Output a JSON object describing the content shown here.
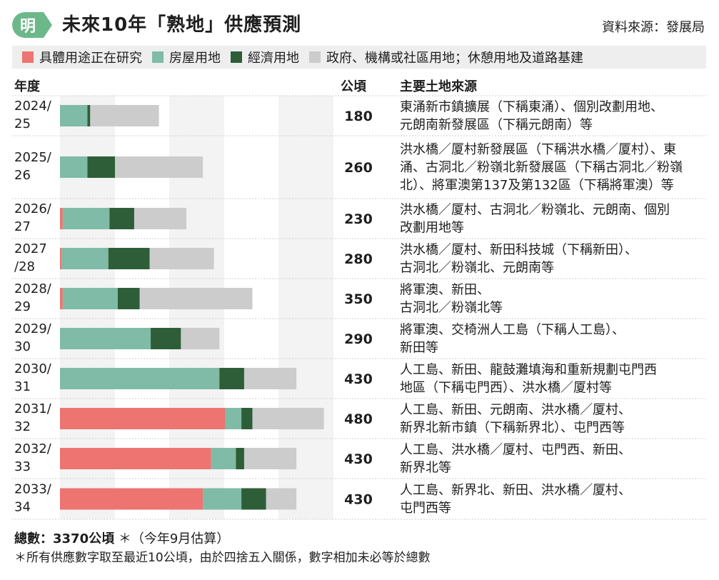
{
  "header": {
    "title": "未來10年「熟地」供應預測",
    "source": "資料來源：發展局",
    "logo_text": "明"
  },
  "legend": [
    {
      "label": "具體用途正在研究",
      "color": "#ed7470"
    },
    {
      "label": "房屋用地",
      "color": "#7fbba6"
    },
    {
      "label": "經濟用地",
      "color": "#2d5e38"
    },
    {
      "label": "政府、機構或社區用地；休憩用地及道路基建",
      "color": "#cccccc"
    }
  ],
  "columns": {
    "year": "年度",
    "hectares": "公頃",
    "source": "主要土地來源"
  },
  "chart_data": {
    "type": "bar",
    "orientation": "horizontal",
    "stacked": true,
    "unit": "公頃",
    "xlim": [
      0,
      480
    ],
    "grid": true,
    "categories": [
      "2024/25",
      "2025/26",
      "2026/27",
      "2027/28",
      "2028/29",
      "2029/30",
      "2030/31",
      "2031/32",
      "2032/33",
      "2033/34"
    ],
    "category_lines": [
      [
        "2024/",
        "25"
      ],
      [
        "2025/",
        "26"
      ],
      [
        "2026/",
        "27"
      ],
      [
        "2027",
        "/28"
      ],
      [
        "2028/",
        "29"
      ],
      [
        "2029/",
        "30"
      ],
      [
        "2030/",
        "31"
      ],
      [
        "2031/",
        "32"
      ],
      [
        "2032/",
        "33"
      ],
      [
        "2033/",
        "34"
      ]
    ],
    "series": [
      {
        "name": "具體用途正在研究",
        "color": "#ed7470",
        "values": [
          0,
          0,
          5,
          3,
          5,
          0,
          0,
          300,
          275,
          260
        ]
      },
      {
        "name": "房屋用地",
        "color": "#7fbba6",
        "values": [
          50,
          50,
          85,
          85,
          100,
          165,
          290,
          30,
          45,
          70
        ]
      },
      {
        "name": "經濟用地",
        "color": "#2d5e38",
        "values": [
          5,
          50,
          45,
          75,
          40,
          55,
          45,
          20,
          15,
          45
        ]
      },
      {
        "name": "政府、機構或社區用地；休憩用地及道路基建",
        "color": "#cccccc",
        "values": [
          125,
          160,
          95,
          117,
          205,
          70,
          95,
          130,
          95,
          55
        ]
      }
    ],
    "totals": [
      "180",
      "260",
      "230",
      "280",
      "350",
      "290",
      "430",
      "480",
      "430",
      "430"
    ]
  },
  "sources": [
    [
      "東涌新市鎮擴展（下稱東涌）、個別改劃用地、",
      "元朗南新發展區（下稱元朗南）等"
    ],
    [
      "洪水橋／厦村新發展區（下稱洪水橋／厦村）、東",
      "涌、古洞北／粉嶺北新發展區（下稱古洞北／粉嶺",
      "北）、將軍澳第137及第132區（下稱將軍澳）等"
    ],
    [
      "洪水橋／厦村、古洞北／粉嶺北、元朗南、個別",
      "改劃用地等"
    ],
    [
      "洪水橋／厦村、新田科技城（下稱新田）、",
      "古洞北／粉嶺北、元朗南等"
    ],
    [
      "將軍澳、新田、",
      "古洞北／粉嶺北等"
    ],
    [
      "將軍澳、交椅洲人工島（下稱人工島）、",
      "新田等"
    ],
    [
      "人工島、新田、龍鼓灘填海和重新規劃屯門西",
      "地區（下稱屯門西）、洪水橋／厦村等"
    ],
    [
      "人工島、新田、元朗南、洪水橋／厦村、",
      "新界北新市鎮（下稱新界北）、屯門西等"
    ],
    [
      "人工島、洪水橋／厦村、屯門西、新田、",
      "新界北等"
    ],
    [
      "人工島、新界北、新田、洪水橋／厦村、",
      "屯門西等"
    ]
  ],
  "footer": {
    "total_label": "總數：3370公頃",
    "total_note": "＊（今年9月估算）",
    "note": "＊所有供應數字取至最近10公頃，由於四捨五入關係，數字相加未必等於總數"
  }
}
